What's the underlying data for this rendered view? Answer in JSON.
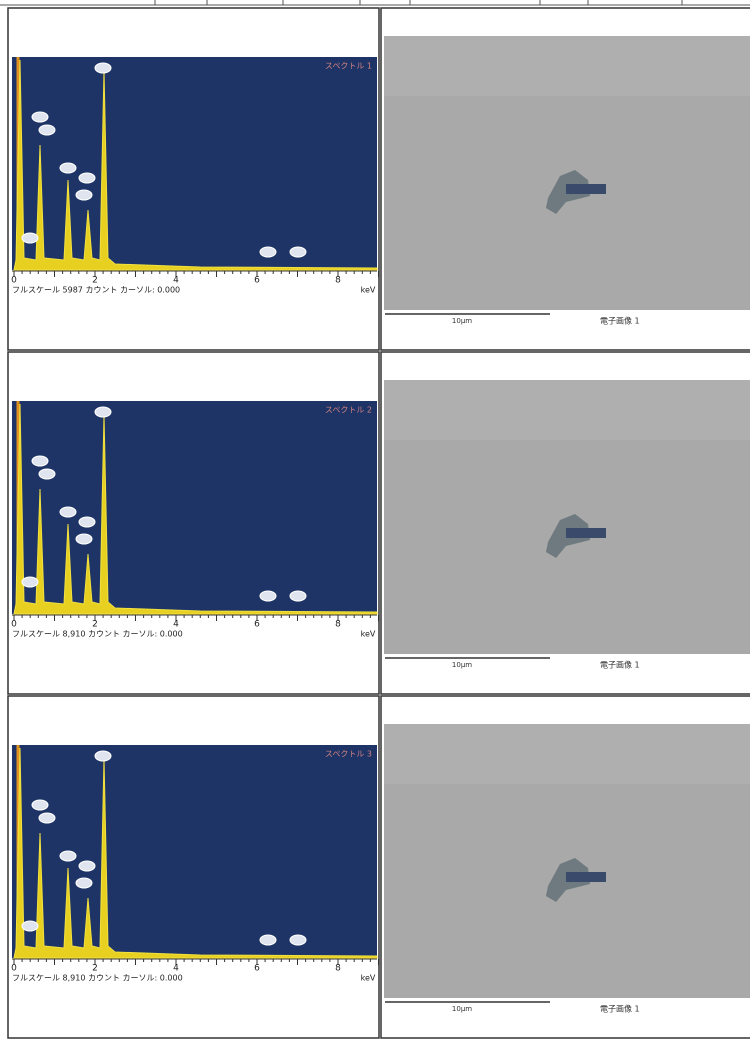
{
  "rows": [
    {
      "spectrum": {
        "label": "スペクトル 1",
        "xticks": [
          "0",
          "2",
          "4",
          "6",
          "8"
        ],
        "unit": "keV",
        "footer": "フルスケール 5987 カウント カーソル: 0.000"
      },
      "image": {
        "scale": "10µm",
        "caption": "電子画像 1"
      }
    },
    {
      "spectrum": {
        "label": "スペクトル 2",
        "xticks": [
          "0",
          "2",
          "4",
          "6",
          "8"
        ],
        "unit": "keV",
        "footer": "フルスケール 8,910 カウント カーソル: 0.000"
      },
      "image": {
        "scale": "10µm",
        "caption": "電子画像 1"
      }
    },
    {
      "spectrum": {
        "label": "スペクトル 3",
        "xticks": [
          "0",
          "2",
          "4",
          "6",
          "8"
        ],
        "unit": "keV",
        "footer": "フルスケール 8,910 カウント カーソル: 0.000"
      },
      "image": {
        "scale": "10µm",
        "caption": "電子画像 1"
      }
    }
  ]
}
